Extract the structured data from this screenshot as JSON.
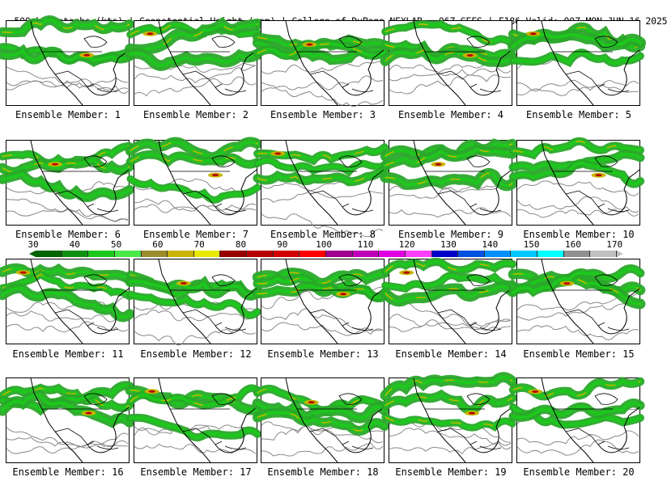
{
  "header": {
    "left": "500mb Isotachs (kts) | Geopotential Height (gpm) | College of DuPage NEXLAB",
    "right": "06Z GEFS | F186 Valid: 00Z MON JUN 16 2025"
  },
  "panels": [
    {
      "label": "Ensemble Member: 1"
    },
    {
      "label": "Ensemble Member: 2"
    },
    {
      "label": "Ensemble Member: 3"
    },
    {
      "label": "Ensemble Member: 4"
    },
    {
      "label": "Ensemble Member: 5"
    },
    {
      "label": "Ensemble Member: 6"
    },
    {
      "label": "Ensemble Member: 7"
    },
    {
      "label": "Ensemble Member: 8"
    },
    {
      "label": "Ensemble Member: 9"
    },
    {
      "label": "Ensemble Member: 10"
    },
    {
      "label": "Ensemble Member: 11"
    },
    {
      "label": "Ensemble Member: 12"
    },
    {
      "label": "Ensemble Member: 13"
    },
    {
      "label": "Ensemble Member: 14"
    },
    {
      "label": "Ensemble Member: 15"
    },
    {
      "label": "Ensemble Member: 16"
    },
    {
      "label": "Ensemble Member: 17"
    },
    {
      "label": "Ensemble Member: 18"
    },
    {
      "label": "Ensemble Member: 19"
    },
    {
      "label": "Ensemble Member: 20"
    }
  ],
  "colorbar": {
    "ticks": [
      "30",
      "40",
      "50",
      "60",
      "70",
      "80",
      "90",
      "100",
      "110",
      "120",
      "130",
      "140",
      "150",
      "160",
      "170"
    ],
    "colors": [
      "#006400",
      "#109010",
      "#1cc81c",
      "#48e848",
      "#9c8c2c",
      "#c8b400",
      "#e8e800",
      "#960000",
      "#b40000",
      "#d20000",
      "#ff0000",
      "#a00090",
      "#c000b8",
      "#e000e0",
      "#ff40ff",
      "#0000c8",
      "#0050e0",
      "#0090ff",
      "#00c8ff",
      "#00ffff",
      "#909090",
      "#c0c0c0"
    ]
  },
  "map_colors": {
    "jet_weak": "#2aa82a",
    "jet_mid": "#1cc81c",
    "jet_strong": "#c8b400",
    "jet_core": "#b40000",
    "contour": "#888888",
    "coast": "#000000"
  }
}
